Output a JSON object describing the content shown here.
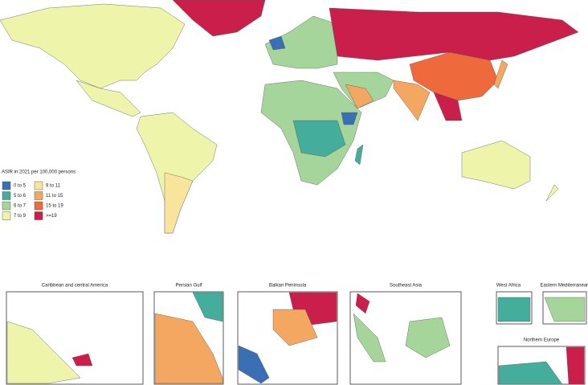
{
  "legend": {
    "title": "ASIR in 2021 per 100,000 persons",
    "items": [
      {
        "label": "0 to 5",
        "color": "#3a6fb5"
      },
      {
        "label": "5 to 6",
        "color": "#45ad9c"
      },
      {
        "label": "6 to 7",
        "color": "#a5d59b"
      },
      {
        "label": "7 to 9",
        "color": "#eef5aa"
      },
      {
        "label": "9 to 11",
        "color": "#f8e59b"
      },
      {
        "label": "11 to 15",
        "color": "#f4a760"
      },
      {
        "label": "15 to 19",
        "color": "#ee6a3d"
      },
      {
        "label": ">=19",
        "color": "#c91f4a"
      }
    ]
  },
  "insets": [
    {
      "title": "Caribbean and central America"
    },
    {
      "title": "Persian Gulf"
    },
    {
      "title": "Balkan Peninsula"
    },
    {
      "title": "Southeast Asia"
    },
    {
      "title": "West Africa"
    },
    {
      "title": "Eastern Mediterranean"
    },
    {
      "title": "Northern Europe"
    }
  ]
}
